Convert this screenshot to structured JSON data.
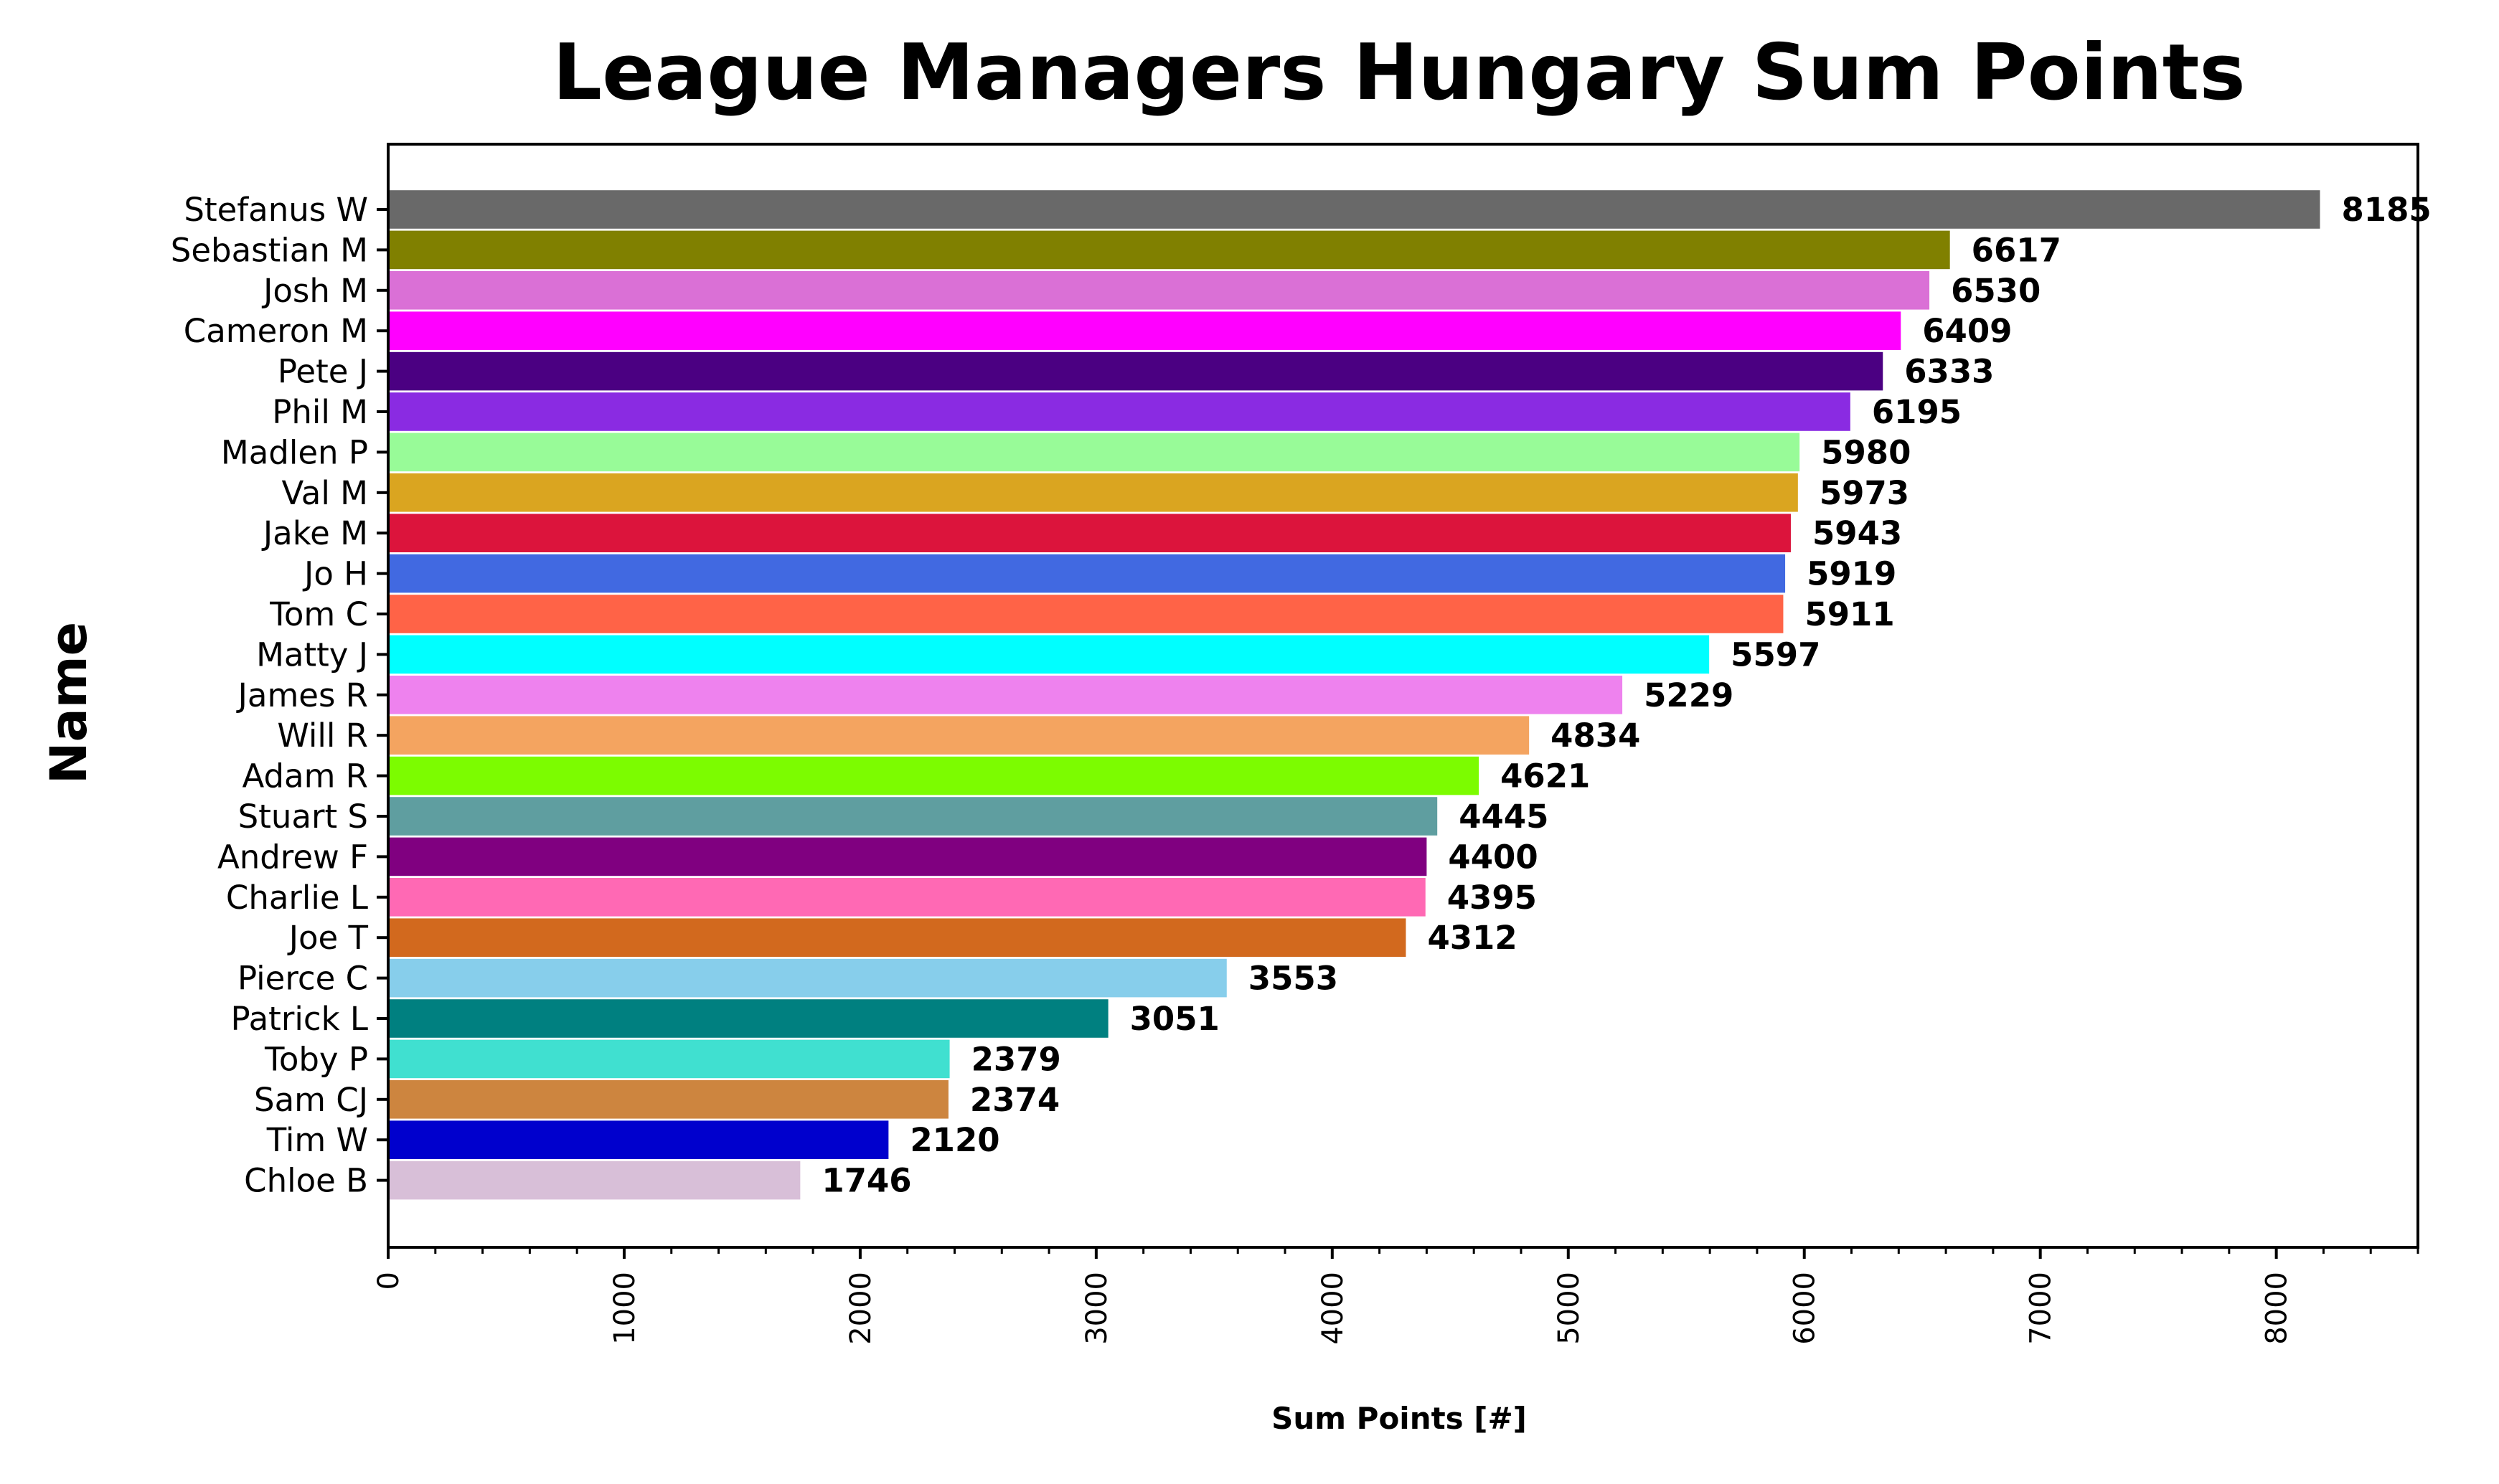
{
  "chart_data": {
    "type": "bar",
    "orientation": "horizontal",
    "title": "League Managers Hungary Sum Points",
    "xlabel": "Sum Points [#]",
    "ylabel": "Name",
    "xlim": [
      0,
      8600
    ],
    "xticks": [
      0,
      1000,
      2000,
      3000,
      4000,
      5000,
      6000,
      7000,
      8000
    ],
    "xtick_labels": [
      "0",
      "1000",
      "2000",
      "3000",
      "4000",
      "5000",
      "6000",
      "7000",
      "8000"
    ],
    "grid": false,
    "legend": false,
    "categories": [
      "Stefanus W",
      "Sebastian M",
      "Josh M",
      "Cameron M",
      "Pete J",
      "Phil M",
      "Madlen P",
      "Val M",
      "Jake M",
      "Jo H",
      "Tom C",
      "Matty J",
      "James R",
      "Will R",
      "Adam R",
      "Stuart S",
      "Andrew F",
      "Charlie L",
      "Joe T",
      "Pierce C",
      "Patrick L",
      "Toby P",
      "Sam CJ",
      "Tim W",
      "Chloe B"
    ],
    "values": [
      8185,
      6617,
      6530,
      6409,
      6333,
      6195,
      5980,
      5973,
      5943,
      5919,
      5911,
      5597,
      5229,
      4834,
      4621,
      4445,
      4400,
      4395,
      4312,
      3553,
      3051,
      2379,
      2374,
      2120,
      1746
    ],
    "value_labels": [
      "8185",
      "6617",
      "6530",
      "6409",
      "6333",
      "6195",
      "5980",
      "5973",
      "5943",
      "5919",
      "5911",
      "5597",
      "5229",
      "4834",
      "4621",
      "4445",
      "4400",
      "4395",
      "4312",
      "3553",
      "3051",
      "2379",
      "2374",
      "2120",
      "1746"
    ],
    "bar_colors": [
      "#696969",
      "#808000",
      "#da70d6",
      "#ff00ff",
      "#4b0082",
      "#8a2be2",
      "#98fb98",
      "#daa520",
      "#dc143c",
      "#4169e1",
      "#ff6347",
      "#00ffff",
      "#ee82ee",
      "#f4a460",
      "#7cfc00",
      "#5f9ea0",
      "#800080",
      "#ff69b4",
      "#d2691e",
      "#87ceeb",
      "#008080",
      "#40e0d0",
      "#cd853f",
      "#0000cd",
      "#d8bfd8"
    ]
  }
}
